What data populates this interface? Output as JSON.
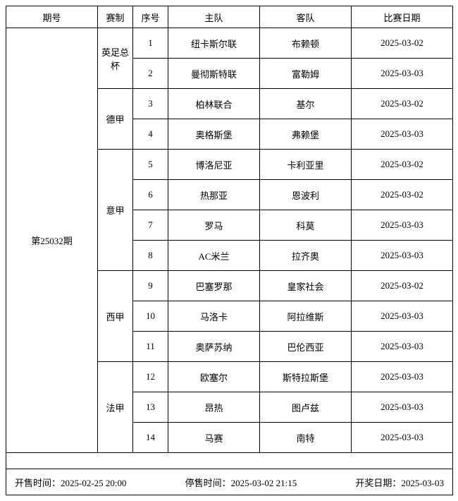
{
  "headers": {
    "period": "期号",
    "league": "赛制",
    "no": "序号",
    "home": "主队",
    "away": "客队",
    "date": "比赛日期"
  },
  "period": "第25032期",
  "groups": [
    {
      "league": "英足总杯",
      "matches": [
        {
          "no": "1",
          "home": "纽卡斯尔联",
          "away": "布赖顿",
          "date": "2025-03-02"
        },
        {
          "no": "2",
          "home": "曼彻斯特联",
          "away": "富勒姆",
          "date": "2025-03-03"
        }
      ]
    },
    {
      "league": "德甲",
      "matches": [
        {
          "no": "3",
          "home": "柏林联合",
          "away": "基尔",
          "date": "2025-03-02"
        },
        {
          "no": "4",
          "home": "奥格斯堡",
          "away": "弗赖堡",
          "date": "2025-03-03"
        }
      ]
    },
    {
      "league": "意甲",
      "matches": [
        {
          "no": "5",
          "home": "博洛尼亚",
          "away": "卡利亚里",
          "date": "2025-03-02"
        },
        {
          "no": "6",
          "home": "热那亚",
          "away": "恩波利",
          "date": "2025-03-02"
        },
        {
          "no": "7",
          "home": "罗马",
          "away": "科莫",
          "date": "2025-03-03"
        },
        {
          "no": "8",
          "home": "AC米兰",
          "away": "拉齐奥",
          "date": "2025-03-03"
        }
      ]
    },
    {
      "league": "西甲",
      "matches": [
        {
          "no": "9",
          "home": "巴塞罗那",
          "away": "皇家社会",
          "date": "2025-03-02"
        },
        {
          "no": "10",
          "home": "马洛卡",
          "away": "阿拉维斯",
          "date": "2025-03-03"
        },
        {
          "no": "11",
          "home": "奥萨苏纳",
          "away": "巴伦西亚",
          "date": "2025-03-03"
        }
      ]
    },
    {
      "league": "法甲",
      "matches": [
        {
          "no": "12",
          "home": "欧塞尔",
          "away": "斯特拉斯堡",
          "date": "2025-03-03"
        },
        {
          "no": "13",
          "home": "昂热",
          "away": "图卢兹",
          "date": "2025-03-03"
        },
        {
          "no": "14",
          "home": "马赛",
          "away": "南特",
          "date": "2025-03-03"
        }
      ]
    }
  ],
  "footer": {
    "sale_start_label": "开售时间：",
    "sale_start": "2025-02-25 20:00",
    "sale_end_label": "停售时间：",
    "sale_end": "2025-03-02 21:15",
    "draw_label": "开奖日期：",
    "draw": "2025-03-03"
  },
  "style": {
    "border_color": "#000000",
    "background_color": "#ffffff",
    "text_color": "#000000",
    "font_family": "SimSun",
    "font_size_pt": 10
  }
}
